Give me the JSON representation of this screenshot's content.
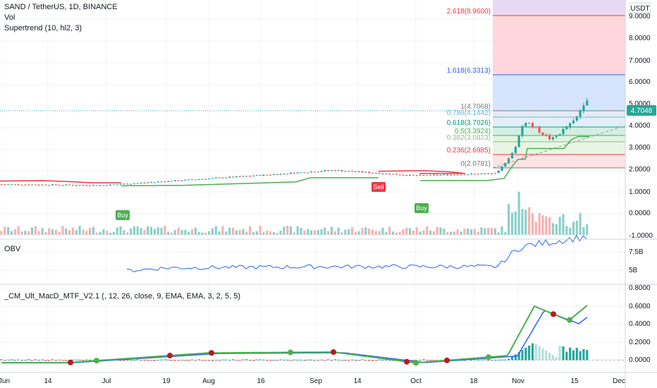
{
  "header": {
    "symbol_line": "SAND / TetherUS, 1D, BINANCE",
    "vol_label": "Vol",
    "supertrend_label": "Supertrend (10, hl2, 3)"
  },
  "price_axis": {
    "currency": "USDT",
    "ticks": [
      "9.0000",
      "8.0000",
      "7.0000",
      "6.0000",
      "5.0000",
      "4.0000",
      "3.0000",
      "2.0000",
      "1.0000",
      "0.0000",
      "-1.0000"
    ],
    "last_price": "4.7048",
    "last_price_color": "#26a69a"
  },
  "fibonacci": [
    {
      "label": "2.618(8.9600)",
      "color": "#f23645"
    },
    {
      "label": "1.618(6.3313)",
      "color": "#2962ff"
    },
    {
      "label": "1(4.7068)",
      "color": "#787b86"
    },
    {
      "label": "0.786(4.1442)",
      "color": "#64b5f6"
    },
    {
      "label": "0.618(3.7026)",
      "color": "#089981"
    },
    {
      "label": "0.5(3.3924)",
      "color": "#4caf50"
    },
    {
      "label": "0.382(3.0823)",
      "color": "#81c784"
    },
    {
      "label": "0.236(2.6985)",
      "color": "#f23645"
    },
    {
      "label": "0(2.0781)",
      "color": "#787b86"
    }
  ],
  "signals": [
    {
      "text": "Buy",
      "color": "#4caf50"
    },
    {
      "text": "Sell",
      "color": "#f23645"
    },
    {
      "text": "Buy",
      "color": "#4caf50"
    }
  ],
  "obv": {
    "title": "OBV",
    "ticks": [
      "7.5B",
      "5B"
    ]
  },
  "macd": {
    "title": "_CM_Ult_MacD_MTF_V2.1 (, 12, 26, close, 9, EMA, EMA, 3, 2, 5, 5)",
    "ticks": [
      "0.8000",
      "0.6000",
      "0.4000",
      "0.2000",
      "0.0000"
    ]
  },
  "time_axis": {
    "labels": [
      "Jun",
      "14",
      "Jul",
      "19",
      "Aug",
      "16",
      "Sep",
      "14",
      "Oct",
      "18",
      "Nov",
      "15",
      "Dec"
    ]
  },
  "colors": {
    "up": "#26a69a",
    "down": "#ef5350",
    "supertrend_up": "#4caf50",
    "supertrend_down": "#f23645",
    "obv_line": "#2962ff",
    "macd_line": "#4caf50",
    "signal_line": "#2962ff"
  },
  "chart_data": {
    "type": "line",
    "title": "SAND / TetherUS, 1D, BINANCE",
    "price_ylim": [
      -1,
      9.5
    ],
    "price_key_points": [
      {
        "x": "2021-06-01",
        "y": 0.35
      },
      {
        "x": "2021-07-01",
        "y": 0.3
      },
      {
        "x": "2021-08-15",
        "y": 0.75
      },
      {
        "x": "2021-09-07",
        "y": 1.0
      },
      {
        "x": "2021-10-01",
        "y": 0.75
      },
      {
        "x": "2021-10-25",
        "y": 0.85
      },
      {
        "x": "2021-10-30",
        "y": 1.9
      },
      {
        "x": "2021-11-02",
        "y": 3.3
      },
      {
        "x": "2021-11-10",
        "y": 2.4
      },
      {
        "x": "2021-11-17",
        "y": 3.3
      },
      {
        "x": "2021-11-20",
        "y": 4.3
      },
      {
        "x": "2021-11-24",
        "y": 4.7
      }
    ],
    "obv_key_points": [
      {
        "x": "2021-07-01",
        "y": 4.8
      },
      {
        "x": "2021-07-20",
        "y": 5.2
      },
      {
        "x": "2021-09-07",
        "y": 5.3
      },
      {
        "x": "2021-10-25",
        "y": 5.3
      },
      {
        "x": "2021-11-01",
        "y": 7.0
      },
      {
        "x": "2021-11-24",
        "y": 8.0
      }
    ],
    "macd_ylim": [
      -0.05,
      0.85
    ],
    "macd_key_points": [
      {
        "x": "2021-06-20",
        "y": -0.03
      },
      {
        "x": "2021-08-01",
        "y": 0.08
      },
      {
        "x": "2021-09-07",
        "y": 0.09
      },
      {
        "x": "2021-10-01",
        "y": -0.03
      },
      {
        "x": "2021-10-28",
        "y": 0.05
      },
      {
        "x": "2021-11-05",
        "y": 0.6
      },
      {
        "x": "2021-11-15",
        "y": 0.44
      },
      {
        "x": "2021-11-24",
        "y": 0.72
      }
    ],
    "xlabel": "",
    "ylabel": ""
  }
}
